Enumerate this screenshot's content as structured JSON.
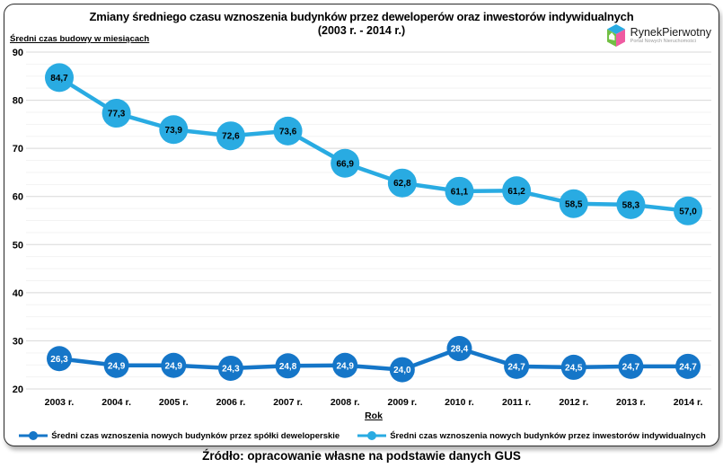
{
  "chart_data": {
    "type": "line",
    "title": "Zmiany średniego czasu wznoszenia budynków przez deweloperów oraz inwestorów indywidualnych",
    "subtitle": "(2003 r. - 2014 r.)",
    "ylabel": "Średni czas budowy w miesiącach",
    "xlabel": "Rok",
    "x": [
      "2003 r.",
      "2004 r.",
      "2005 r.",
      "2006 r.",
      "2007 r.",
      "2008 r.",
      "2009 r.",
      "2010 r.",
      "2011 r.",
      "2012 r.",
      "2013 r.",
      "2014 r."
    ],
    "ylim": [
      20,
      90
    ],
    "ytick_step": 10,
    "minor_grid_step": 2.5,
    "grid": true,
    "legend_position": "bottom",
    "decimal_separator": ",",
    "grid_major_color": "#d8d8d8",
    "grid_minor_color": "#f3f3f3",
    "series": [
      {
        "name": "Średni czas wznoszenia nowych budynków przez spółki deweloperskie",
        "color": "#1576C8",
        "label_color": "#ffffff",
        "marker_radius": 14,
        "values": [
          26.3,
          24.9,
          24.9,
          24.3,
          24.8,
          24.9,
          24.0,
          28.4,
          24.7,
          24.5,
          24.7,
          24.7
        ]
      },
      {
        "name": "Średni czas wznoszenia nowych budynków przez inwestorów indywidualnych",
        "color": "#29ABE2",
        "label_color": "#000000",
        "marker_radius": 16,
        "values": [
          84.7,
          77.3,
          73.9,
          72.6,
          73.6,
          66.9,
          62.8,
          61.1,
          61.2,
          58.5,
          58.3,
          57.0
        ]
      }
    ]
  },
  "logo": {
    "name": "RynekPierwotny",
    "tagline": "Portal Nowych Nieruchomości",
    "colors": {
      "green": "#72BF44",
      "blue": "#29ABE2",
      "pink": "#EF5BA1"
    }
  },
  "footer": {
    "source": "Źródło: opracowanie własne na podstawie danych GUS"
  }
}
